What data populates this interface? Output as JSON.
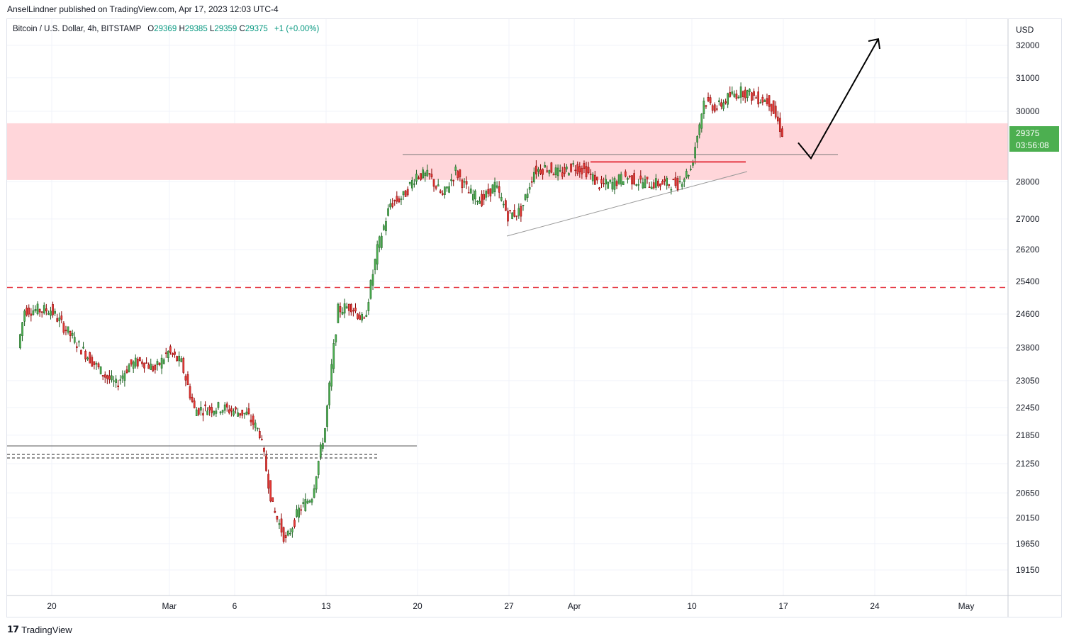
{
  "header": {
    "publisher_text": "AnselLindner published on TradingView.com, Apr 17, 2023 12:03 UTC-4"
  },
  "legend": {
    "symbol": "Bitcoin / U.S. Dollar, 4h, BITSTAMP",
    "open_label": "O",
    "open_value": "29369",
    "high_label": "H",
    "high_value": "29385",
    "low_label": "L",
    "low_value": "29359",
    "close_label": "C",
    "close_value": "29375",
    "change": "+1 (+0.00%)"
  },
  "price_badge": {
    "price": "29375",
    "countdown": "03:56:08",
    "color": "#4caf50"
  },
  "footer": {
    "brand": "TradingView",
    "logo_icon": "tradingview-logo-icon"
  },
  "chart_data": {
    "type": "candlestick",
    "currency_label": "USD",
    "y_ticks": [
      32000,
      31000,
      30000,
      28000,
      27000,
      26200,
      25400,
      24600,
      23800,
      23050,
      22450,
      21850,
      21250,
      20650,
      20150,
      19650,
      19150
    ],
    "y_scale": "log",
    "x_tick_labels": [
      "20",
      "Mar",
      "6",
      "13",
      "20",
      "27",
      "Apr",
      "10",
      "17",
      "24",
      "May"
    ],
    "colors": {
      "up": "#089981",
      "down": "#f23645",
      "up_body": "#4caf50",
      "down_body": "#e53935",
      "zone": "#ffd6da",
      "dashed_level": "#e53945",
      "arrow": "#000000"
    },
    "series": {
      "path_points": [
        [
          "20",
          23800
        ],
        [
          "Feb 18",
          24700
        ],
        [
          "Feb 20",
          24700
        ],
        [
          "Feb 22",
          23900
        ],
        [
          "Feb 24",
          23200
        ],
        [
          "Feb 25",
          22950
        ],
        [
          "Feb 26",
          23400
        ],
        [
          "Feb 27",
          23500
        ],
        [
          "Feb 28",
          23300
        ],
        [
          "Mar 1",
          23700
        ],
        [
          "Mar 2",
          23450
        ],
        [
          "Mar 3",
          22400
        ],
        [
          "Mar 5",
          22450
        ],
        [
          "Mar 7",
          22300
        ],
        [
          "Mar 8",
          21900
        ],
        [
          "Mar 9",
          20350
        ],
        [
          "Mar 10",
          19700
        ],
        [
          "Mar 11",
          20300
        ],
        [
          "Mar 12",
          20600
        ],
        [
          "Mar 13",
          22000
        ],
        [
          "Mar 14",
          24700
        ],
        [
          "Mar 15",
          24800
        ],
        [
          "Mar 16",
          24400
        ],
        [
          "Mar 17",
          26200
        ],
        [
          "Mar 18",
          27400
        ],
        [
          "Mar 19",
          27600
        ],
        [
          "Mar 20",
          28200
        ],
        [
          "Mar 21",
          28150
        ],
        [
          "Mar 22",
          27600
        ],
        [
          "Mar 23",
          28300
        ],
        [
          "Mar 24",
          27700
        ],
        [
          "Mar 25",
          27500
        ],
        [
          "Mar 26",
          27900
        ],
        [
          "Mar 27",
          27100
        ],
        [
          "Mar 28",
          27200
        ],
        [
          "Mar 29",
          28300
        ],
        [
          "Mar 30",
          28400
        ],
        [
          "Mar 31",
          28200
        ],
        [
          "Apr 1",
          28450
        ],
        [
          "Apr 2",
          28300
        ],
        [
          "Apr 3",
          27900
        ],
        [
          "Apr 4",
          27950
        ],
        [
          "Apr 5",
          28150
        ],
        [
          "Apr 6",
          28000
        ],
        [
          "Apr 7",
          27950
        ],
        [
          "Apr 8",
          27950
        ],
        [
          "Apr 9",
          27950
        ],
        [
          "Apr 10",
          28350
        ],
        [
          "Apr 11",
          30300
        ],
        [
          "Apr 12",
          30100
        ],
        [
          "Apr 13",
          30450
        ],
        [
          "Apr 14",
          30600
        ],
        [
          "Apr 15",
          30400
        ],
        [
          "Apr 16",
          30300
        ],
        [
          "Apr 17",
          29375
        ]
      ]
    },
    "annotations": {
      "resistance_zone": [
        28050,
        29650
      ],
      "dashed_level": 25250,
      "breakout_line": 28550,
      "old_support_line": 21750,
      "projection": [
        [
          29375,
          28650
        ],
        [
          28650,
          32200
        ]
      ]
    }
  }
}
